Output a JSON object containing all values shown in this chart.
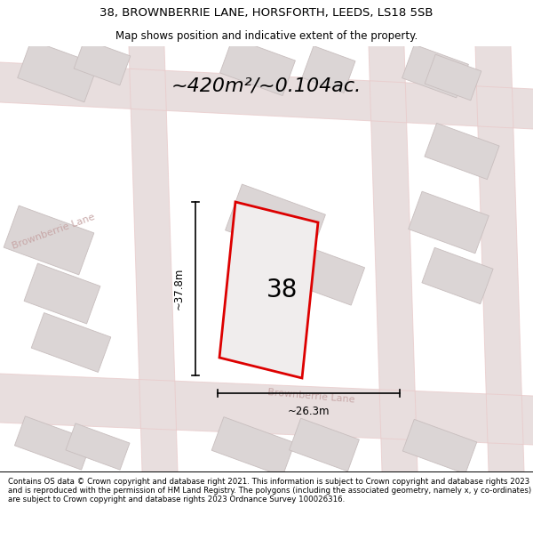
{
  "title_line1": "38, BROWNBERRIE LANE, HORSFORTH, LEEDS, LS18 5SB",
  "title_line2": "Map shows position and indicative extent of the property.",
  "footer_text": "Contains OS data © Crown copyright and database right 2021. This information is subject to Crown copyright and database rights 2023 and is reproduced with the permission of HM Land Registry. The polygons (including the associated geometry, namely x, y co-ordinates) are subject to Crown copyright and database rights 2023 Ordnance Survey 100026316.",
  "area_label": "~420m²/~0.104ac.",
  "number_label": "38",
  "dim_width": "~26.3m",
  "dim_height": "~37.8m",
  "street_label": "Brownberrie Lane",
  "bg_map_color": "#f2eeee",
  "plot_fill": "#f0eded",
  "plot_edge": "#dd0000",
  "road_fill": "#e8dede",
  "road_line": "#e8c8c8",
  "building_fill": "#dbd5d5",
  "building_edge": "#c8bebe"
}
